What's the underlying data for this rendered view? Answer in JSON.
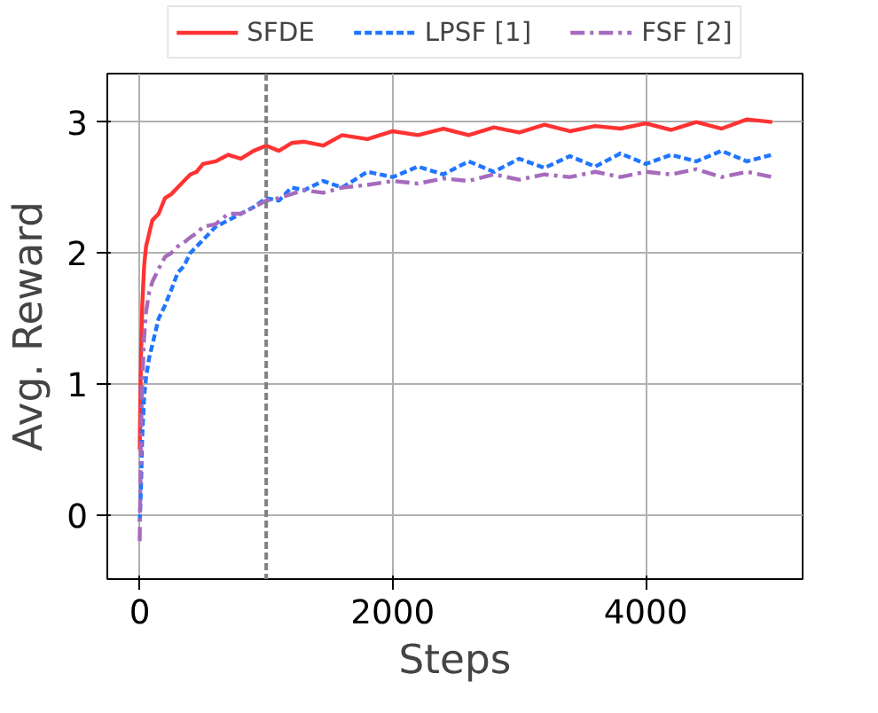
{
  "chart_data": {
    "type": "line",
    "xlabel": "Steps",
    "ylabel": "Avg. Reward",
    "xlim": [
      -256,
      5240
    ],
    "ylim": [
      -0.49,
      3.37
    ],
    "xticks": [
      0,
      2000,
      4000
    ],
    "yticks": [
      0,
      1,
      2,
      3
    ],
    "grid": true,
    "legend": "top",
    "series": [
      {
        "name": "SFDE",
        "color": "#ff3333",
        "line_style": "solid",
        "x": [
          0,
          10,
          20,
          35,
          50,
          75,
          100,
          150,
          200,
          250,
          300,
          350,
          400,
          450,
          500,
          600,
          700,
          800,
          900,
          1000,
          1100,
          1200,
          1300,
          1450,
          1600,
          1800,
          2000,
          2200,
          2400,
          2600,
          2800,
          3000,
          3200,
          3400,
          3600,
          3800,
          4000,
          4200,
          4400,
          4600,
          4800,
          5000
        ],
        "values": [
          0.5,
          1.2,
          1.6,
          1.9,
          2.05,
          2.15,
          2.25,
          2.3,
          2.42,
          2.45,
          2.5,
          2.55,
          2.6,
          2.62,
          2.68,
          2.7,
          2.75,
          2.72,
          2.78,
          2.82,
          2.78,
          2.84,
          2.85,
          2.82,
          2.9,
          2.87,
          2.93,
          2.9,
          2.95,
          2.9,
          2.96,
          2.92,
          2.98,
          2.93,
          2.97,
          2.95,
          2.99,
          2.94,
          3.0,
          2.95,
          3.02,
          3.0
        ]
      },
      {
        "name": "LPSF [1]",
        "color": "#2176ff",
        "line_style": "dashed",
        "x": [
          0,
          10,
          20,
          35,
          50,
          75,
          100,
          150,
          200,
          250,
          300,
          350,
          400,
          450,
          500,
          600,
          700,
          800,
          900,
          1000,
          1100,
          1200,
          1300,
          1450,
          1600,
          1800,
          2000,
          2200,
          2400,
          2600,
          2800,
          3000,
          3200,
          3400,
          3600,
          3800,
          4000,
          4200,
          4400,
          4600,
          4800,
          5000
        ],
        "values": [
          -0.05,
          0.2,
          0.6,
          0.9,
          1.05,
          1.2,
          1.3,
          1.5,
          1.6,
          1.72,
          1.85,
          1.9,
          2.0,
          2.05,
          2.1,
          2.2,
          2.25,
          2.3,
          2.35,
          2.42,
          2.4,
          2.5,
          2.48,
          2.55,
          2.5,
          2.62,
          2.58,
          2.66,
          2.6,
          2.7,
          2.62,
          2.72,
          2.65,
          2.74,
          2.66,
          2.76,
          2.68,
          2.75,
          2.7,
          2.78,
          2.7,
          2.75
        ]
      },
      {
        "name": "FSF [2]",
        "color": "#a66bbe",
        "line_style": "dashdot",
        "x": [
          0,
          10,
          20,
          35,
          50,
          75,
          100,
          150,
          200,
          250,
          300,
          350,
          400,
          450,
          500,
          600,
          700,
          800,
          900,
          1000,
          1100,
          1200,
          1300,
          1450,
          1600,
          1800,
          2000,
          2200,
          2400,
          2600,
          2800,
          3000,
          3200,
          3400,
          3600,
          3800,
          4000,
          4200,
          4400,
          4600,
          4800,
          5000
        ],
        "values": [
          -0.2,
          0.6,
          1.0,
          1.35,
          1.55,
          1.7,
          1.78,
          1.88,
          1.97,
          2.0,
          2.05,
          2.08,
          2.12,
          2.15,
          2.2,
          2.22,
          2.3,
          2.3,
          2.35,
          2.4,
          2.42,
          2.45,
          2.48,
          2.46,
          2.5,
          2.52,
          2.55,
          2.53,
          2.57,
          2.55,
          2.6,
          2.56,
          2.6,
          2.58,
          2.62,
          2.58,
          2.62,
          2.6,
          2.64,
          2.58,
          2.62,
          2.58
        ]
      }
    ],
    "ref_lines": [
      {
        "axis": "x",
        "value": 1000,
        "color": "#808080",
        "line_style": "dashed"
      }
    ]
  }
}
